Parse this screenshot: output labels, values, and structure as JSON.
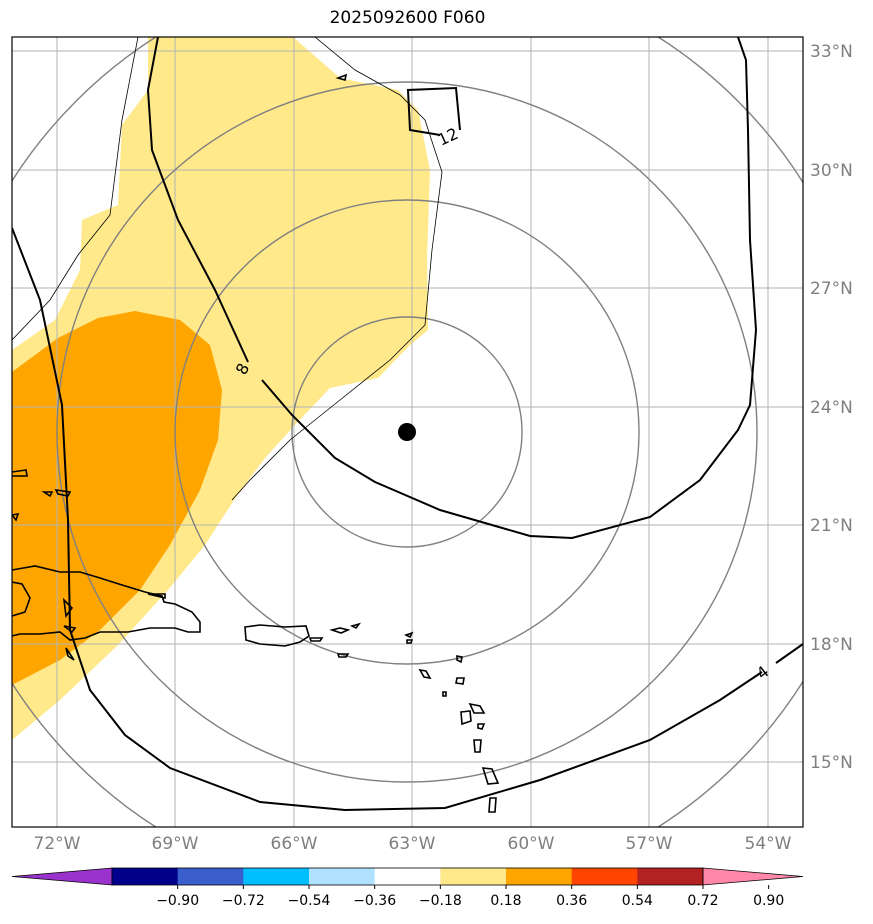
{
  "title": "2025092600 F060",
  "lat_labels": [
    "33°N",
    "30°N",
    "27°N",
    "24°N",
    "21°N",
    "18°N",
    "15°N"
  ],
  "lon_labels": [
    "72°W",
    "69°W",
    "66°W",
    "63°W",
    "60°W",
    "57°W",
    "54°W"
  ],
  "contour_labels": [
    "12",
    "8",
    "4"
  ],
  "colorbar": {
    "ticks": [
      "−0.90",
      "−0.72",
      "−0.54",
      "−0.36",
      "−0.18",
      "0.18",
      "0.36",
      "0.54",
      "0.72",
      "0.90"
    ],
    "colors": [
      "#9933cc",
      "#00008b",
      "#3a5fcd",
      "#00bfff",
      "#b0e2ff",
      "#ffffff",
      "#ffe98a",
      "#ffa500",
      "#ff4500",
      "#b22222",
      "#ff88aa"
    ]
  },
  "storm_center": {
    "lat": 23.4,
    "lon": -63.1
  }
}
